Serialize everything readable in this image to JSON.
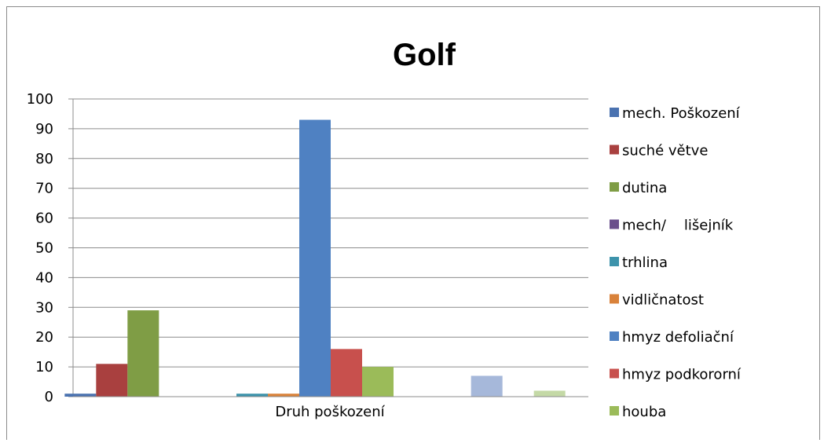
{
  "chart_data": {
    "type": "bar",
    "title": "Golf",
    "categories": [
      "",
      "Druh poškození",
      ""
    ],
    "xlabel": "Druh poškození",
    "ylabel": "",
    "ylim": [
      0,
      100
    ],
    "yticks": [
      0,
      10,
      20,
      30,
      40,
      50,
      60,
      70,
      80,
      90,
      100
    ],
    "grid": true,
    "legend_position": "right",
    "series": [
      {
        "name": "mech. Poškození",
        "color": "#4a72b0",
        "values": [
          1,
          null,
          null
        ]
      },
      {
        "name": "suché větve",
        "color": "#a9403f",
        "values": [
          11,
          null,
          null
        ]
      },
      {
        "name": "dutina",
        "color": "#7f9d45",
        "values": [
          29,
          null,
          null
        ]
      },
      {
        "name": "mech/    lišejník",
        "color": "#6a4e8c",
        "values": [
          0,
          null,
          null
        ]
      },
      {
        "name": "trhlina",
        "color": "#3d93ab",
        "values": [
          null,
          1,
          null
        ]
      },
      {
        "name": "vidličnatost",
        "color": "#d9823a",
        "values": [
          null,
          1,
          null
        ]
      },
      {
        "name": "hmyz defoliační",
        "color": "#4f81c2",
        "values": [
          null,
          93,
          null
        ]
      },
      {
        "name": "hmyz podkororní",
        "color": "#c8504d",
        "values": [
          null,
          16,
          null
        ]
      },
      {
        "name": "houba",
        "color": "#9bbb59",
        "values": [
          null,
          10,
          null
        ]
      },
      {
        "name": "",
        "color": "#a6b8da",
        "values": [
          null,
          null,
          7
        ]
      },
      {
        "name": "",
        "color": "#c4d9a6",
        "values": [
          null,
          null,
          2
        ]
      }
    ]
  }
}
